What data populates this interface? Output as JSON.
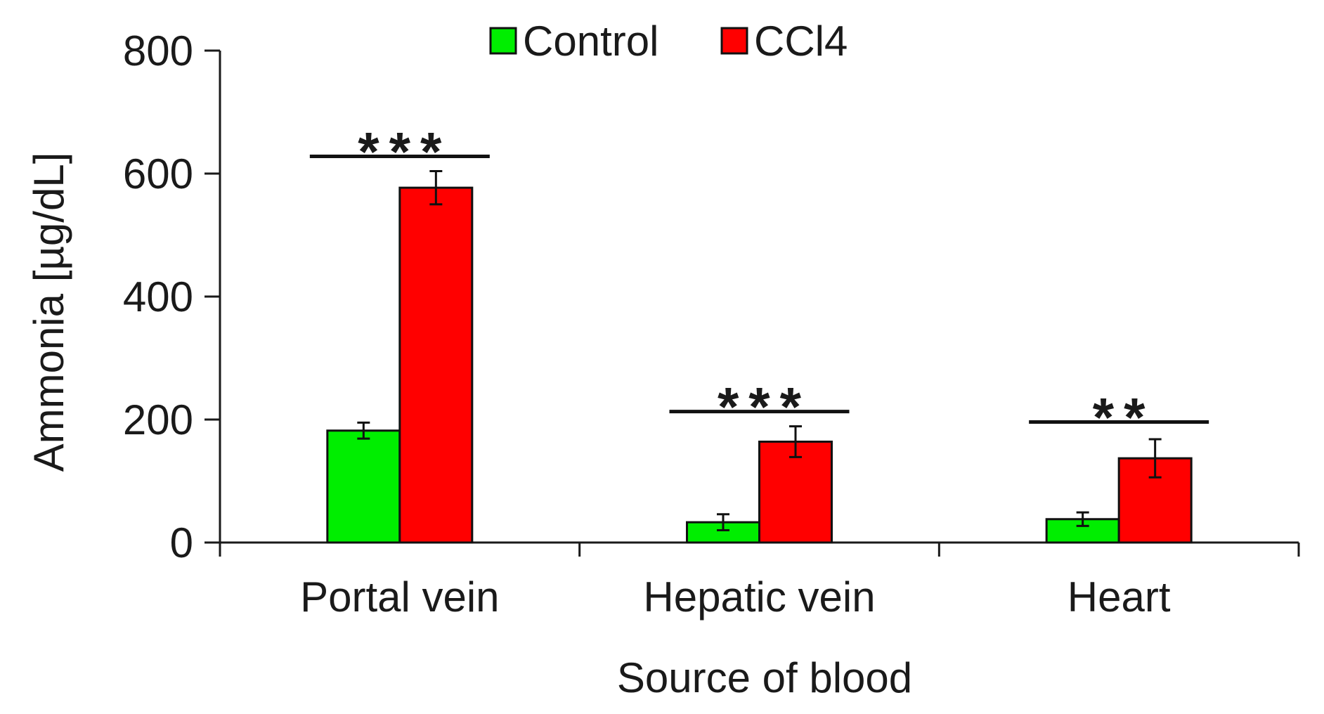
{
  "chart_data": {
    "type": "bar",
    "title": "",
    "xlabel": "Source of blood",
    "ylabel": "Ammonia [µg/dL]",
    "ylim": [
      0,
      800
    ],
    "yticks": [
      "0",
      "200",
      "400",
      "600",
      "800"
    ],
    "categories": [
      "Portal vein",
      "Hepatic vein",
      "Heart"
    ],
    "series": [
      {
        "name": "Control",
        "color": "#00ee00",
        "values": [
          182,
          33,
          38
        ],
        "errors": [
          13,
          13,
          11
        ]
      },
      {
        "name": "CCl4",
        "color": "#ff0000",
        "values": [
          577,
          164,
          137
        ],
        "errors": [
          27,
          25,
          31
        ]
      }
    ],
    "significance": [
      {
        "category": "Portal vein",
        "label": "***",
        "level": 628
      },
      {
        "category": "Hepatic vein",
        "label": "***",
        "level": 213
      },
      {
        "category": "Heart",
        "label": "**",
        "level": 196
      }
    ],
    "legend_position": "top-center",
    "grid": false
  }
}
